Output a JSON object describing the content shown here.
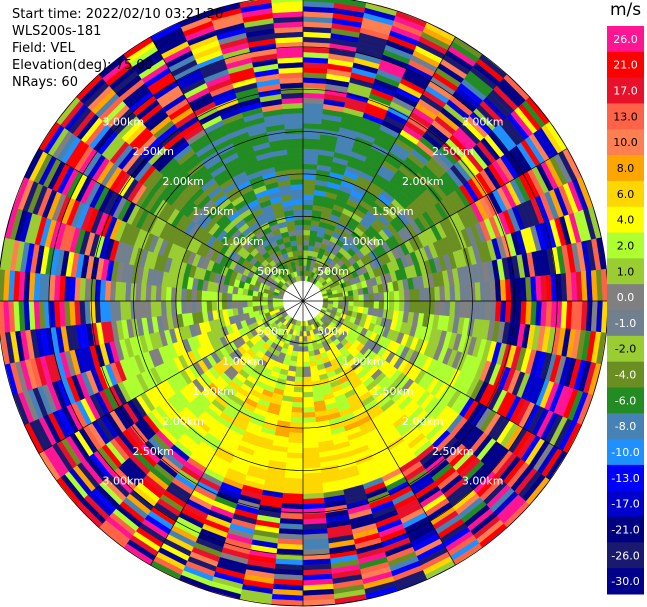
{
  "header": {
    "start_time": {
      "label": "Start time",
      "value": "2022/02/10 03:21:20"
    },
    "instrument": "WLS200s-181",
    "field": {
      "label": "Field",
      "value": "VEL"
    },
    "elevation": {
      "label": "Elevation(deg)",
      "value": "75.00"
    },
    "nrays": {
      "label": "NRays",
      "value": "60"
    }
  },
  "colorbar": {
    "unit": "m/s",
    "ticks": [
      "26.0",
      "21.0",
      "17.0",
      "13.0",
      "10.0",
      "8.0",
      "6.0",
      "4.0",
      "2.0",
      "1.0",
      "0.0",
      "-1.0",
      "-2.0",
      "-4.0",
      "-6.0",
      "-8.0",
      "-10.0",
      "-13.0",
      "-17.0",
      "-21.0",
      "-26.0",
      "-30.0"
    ],
    "colors": [
      "#ff1493",
      "#ff0000",
      "#e8102a",
      "#ff6347",
      "#ff7f50",
      "#ffa500",
      "#ffd700",
      "#ffff00",
      "#adff2f",
      "#9acd32",
      "#808080",
      "#708090",
      "#9acd32",
      "#6b8e23",
      "#228b22",
      "#4682b4",
      "#1e90ff",
      "#0000ff",
      "#0000cd",
      "#000080",
      "#191970",
      "#00008b"
    ]
  },
  "chart_data": {
    "type": "heatmap",
    "projection": "polar PPI",
    "field": "VEL",
    "units": "m/s",
    "rays": 60,
    "range_rings_km": [
      "500m",
      "1.00km",
      "1.50km",
      "2.00km",
      "2.50km",
      "3.00km"
    ],
    "range_ring_values_km": [
      0.5,
      1.0,
      1.5,
      2.0,
      2.5,
      3.0
    ],
    "max_range_km": 3.6,
    "value_range": [
      -30,
      30
    ],
    "grid_lines_deg": [
      0,
      30,
      60,
      90,
      120,
      150,
      180,
      210,
      240,
      270,
      300,
      330
    ],
    "grid": true
  }
}
